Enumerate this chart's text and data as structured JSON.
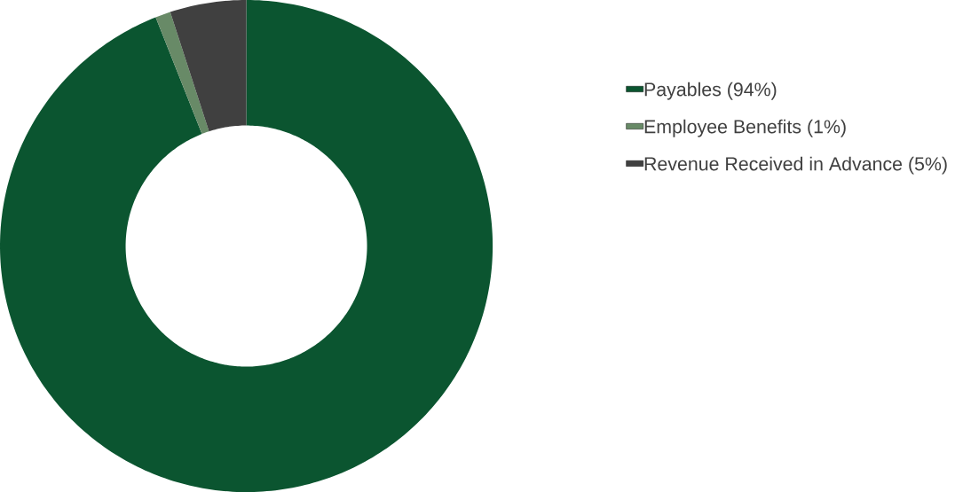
{
  "chart_data": {
    "type": "donut",
    "categories": [
      "Payables (94%)",
      "Employee Benefits (1%)",
      "Revenue Received in Advance (5%)"
    ],
    "values": [
      94,
      1,
      5
    ],
    "colors": [
      "#0b5530",
      "#688a67",
      "#404040"
    ],
    "legend": "right"
  }
}
